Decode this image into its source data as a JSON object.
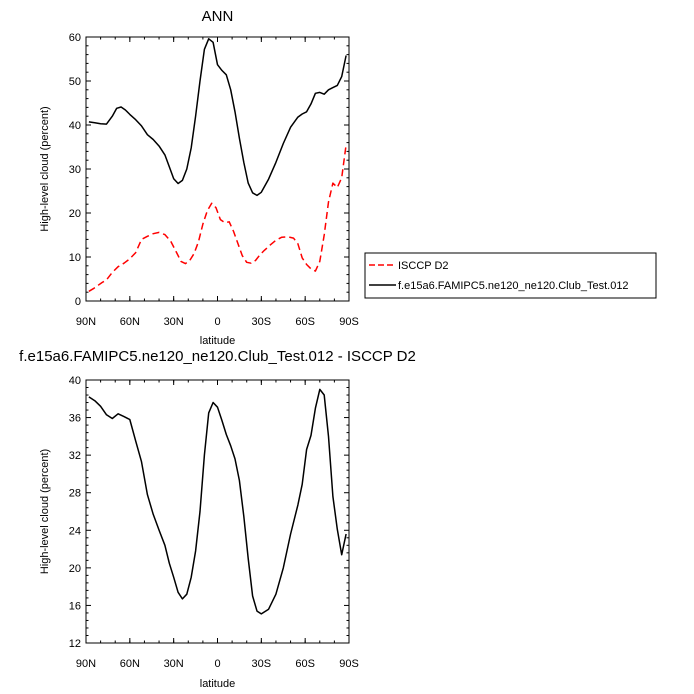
{
  "chart_data": [
    {
      "type": "line",
      "title": "ANN",
      "xlabel": "latitude",
      "ylabel": "High-level cloud (percent)",
      "xlim": [
        90,
        -90
      ],
      "ylim": [
        0,
        60
      ],
      "x_ticks": [
        "90N",
        "60N",
        "30N",
        "0",
        "30S",
        "60S",
        "90S"
      ],
      "y_ticks": [
        "0",
        "10",
        "20",
        "30",
        "40",
        "50",
        "60"
      ],
      "grid": false,
      "legend_position": "right",
      "series": [
        {
          "name": "ISCCP D2",
          "color": "#ff0000",
          "dash": "dashed",
          "x": [
            88,
            85,
            82,
            79,
            76,
            72,
            68,
            64,
            60,
            56,
            52,
            48,
            44,
            40,
            36,
            32,
            28,
            25,
            22,
            19,
            16,
            13,
            10,
            7,
            4,
            1,
            -2,
            -5,
            -8,
            -11,
            -14,
            -17,
            -20,
            -23,
            -26,
            -29,
            -32,
            -36,
            -40,
            -44,
            -48,
            -52,
            -55,
            -58,
            -61,
            -64,
            -67,
            -70,
            -73,
            -76,
            -79,
            -82,
            -85,
            -88
          ],
          "y": [
            2.2,
            2.8,
            3.5,
            4.2,
            4.8,
            6.5,
            7.8,
            8.6,
            9.6,
            11.0,
            14.0,
            14.7,
            15.3,
            15.6,
            15.1,
            13.6,
            11.0,
            9.0,
            8.5,
            9.2,
            10.8,
            13.5,
            17.5,
            20.5,
            22.2,
            21.2,
            18.5,
            17.8,
            18.0,
            15.8,
            13.0,
            10.3,
            8.8,
            8.6,
            9.2,
            10.5,
            11.5,
            12.7,
            13.8,
            14.5,
            14.6,
            14.3,
            13.0,
            9.8,
            8.3,
            7.3,
            6.8,
            9.0,
            15.0,
            22.5,
            26.8,
            25.8,
            28.0,
            35.5
          ]
        },
        {
          "name": "f.e15a6.FAMIPC5.ne120_ne120.Club_Test.012",
          "color": "#000000",
          "dash": "solid",
          "x": [
            88,
            84,
            80,
            76,
            72,
            69,
            66,
            63,
            60,
            56,
            52,
            48,
            44,
            40,
            36,
            33,
            30,
            27,
            24,
            21,
            18,
            15,
            12,
            9,
            6,
            3,
            0,
            -3,
            -6,
            -9,
            -12,
            -15,
            -18,
            -21,
            -24,
            -27,
            -30,
            -35,
            -40,
            -45,
            -50,
            -55,
            -58,
            -61,
            -64,
            -67,
            -70,
            -73,
            -76,
            -79,
            -82,
            -85,
            -88
          ],
          "y": [
            40.7,
            40.5,
            40.3,
            40.2,
            42.0,
            43.8,
            44.1,
            43.4,
            42.4,
            41.2,
            39.8,
            37.8,
            36.7,
            35.2,
            33.2,
            30.5,
            27.8,
            26.7,
            27.4,
            30.0,
            34.8,
            42.0,
            50.0,
            57.2,
            59.6,
            58.8,
            53.7,
            52.4,
            51.4,
            48.0,
            43.0,
            37.0,
            31.5,
            26.8,
            24.6,
            24.0,
            24.7,
            27.7,
            31.5,
            35.8,
            39.5,
            41.8,
            42.5,
            43.0,
            44.8,
            47.2,
            47.4,
            47.0,
            48.0,
            48.5,
            49.0,
            51.0,
            55.8
          ]
        }
      ]
    },
    {
      "type": "line",
      "title": "f.e15a6.FAMIPC5.ne120_ne120.Club_Test.012 - ISCCP D2",
      "xlabel": "latitude",
      "ylabel": "High-level cloud (percent)",
      "xlim": [
        90,
        -90
      ],
      "ylim": [
        12,
        40
      ],
      "x_ticks": [
        "90N",
        "60N",
        "30N",
        "0",
        "30S",
        "60S",
        "90S"
      ],
      "y_ticks": [
        "12",
        "16",
        "20",
        "24",
        "28",
        "32",
        "36",
        "40"
      ],
      "grid": false,
      "series": [
        {
          "color": "#000000",
          "dash": "solid",
          "x": [
            88,
            84,
            80,
            76,
            72,
            68,
            64,
            60,
            56,
            52,
            48,
            44,
            40,
            36,
            33,
            30,
            27,
            24,
            21,
            18,
            15,
            12,
            9,
            6,
            3,
            0,
            -3,
            -6,
            -9,
            -12,
            -15,
            -18,
            -21,
            -24,
            -27,
            -30,
            -35,
            -40,
            -45,
            -50,
            -55,
            -58,
            -61,
            -64,
            -67,
            -70,
            -73,
            -76,
            -79,
            -82,
            -85,
            -88
          ],
          "y": [
            38.2,
            37.8,
            37.2,
            36.3,
            35.9,
            36.4,
            36.1,
            35.8,
            33.5,
            31.3,
            27.8,
            25.7,
            24.0,
            22.4,
            20.5,
            19.0,
            17.4,
            16.7,
            17.2,
            19.0,
            21.8,
            26.0,
            32.0,
            36.5,
            37.6,
            37.1,
            35.7,
            34.2,
            33.0,
            31.6,
            29.3,
            25.5,
            21.0,
            17.0,
            15.4,
            15.1,
            15.6,
            17.2,
            20.0,
            23.6,
            26.7,
            28.9,
            32.6,
            34.1,
            37.0,
            39.0,
            38.4,
            34.0,
            27.6,
            24.1,
            21.4,
            23.6
          ]
        }
      ]
    }
  ]
}
